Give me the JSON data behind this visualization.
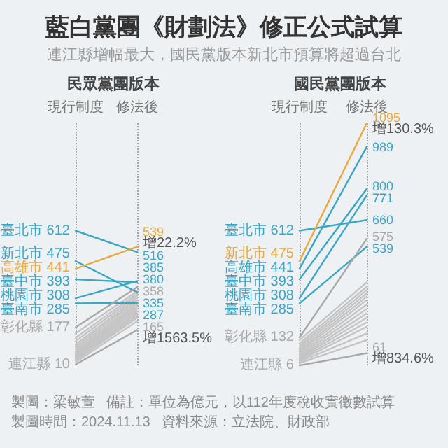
{
  "chart_data": [
    {
      "type": "other",
      "title": "藍白黨團《財劃法》修正公式試算",
      "subtitle": "連江縣增幅最大，國民黨版本新北市預算將超過台北",
      "annotations": [
        "製圖：梁敏萱",
        "備註：單位為億元，以112年度稅收實徵數試算",
        "製圖時間：2024.11.13",
        "資料來源：立法院、財政部"
      ]
    },
    {
      "type": "line",
      "title": "民眾黨團版本",
      "categories": [
        "現行制度",
        "修法後"
      ],
      "grid": "x",
      "marker": "none",
      "line_style": "solid",
      "series": [
        {
          "name": "臺北市",
          "color": "#3aa6c4",
          "values": [
            612,
            516
          ],
          "value_labels": [
            "612",
            "516"
          ]
        },
        {
          "name": "新北市",
          "color": "#3aa6c4",
          "values": [
            475,
            335
          ],
          "value_labels": [
            "475",
            "335"
          ]
        },
        {
          "name": "高雄市",
          "color": "#e9a93c",
          "values": [
            441,
            539
          ],
          "value_labels": [
            "441",
            "539"
          ]
        },
        {
          "name": "臺中市",
          "color": "#3aa6c4",
          "values": [
            393,
            380
          ],
          "value_labels": [
            "393",
            "380"
          ]
        },
        {
          "name": "桃園市",
          "color": "#3aa6c4",
          "values": [
            308,
            385
          ],
          "value_labels": [
            "308",
            "385"
          ]
        },
        {
          "name": "臺南市",
          "color": "#3aa6c4",
          "values": [
            285,
            287
          ],
          "value_labels": [
            "285",
            "287"
          ]
        },
        {
          "name": "彰化縣",
          "color": "#a8a8a8",
          "values": [
            177,
            358
          ],
          "value_labels": [
            "177",
            "358"
          ]
        },
        {
          "name": "連江縣",
          "color": "#a8a8a8",
          "values": [
            10,
            165
          ],
          "value_labels": [
            "10",
            "165"
          ]
        },
        {
          "color": "#c4c4c4",
          "values": [
            150,
            340
          ]
        },
        {
          "color": "#c4c4c4",
          "values": [
            130,
            330
          ]
        },
        {
          "color": "#c4c4c4",
          "values": [
            115,
            320
          ]
        },
        {
          "color": "#c4c4c4",
          "values": [
            100,
            310
          ]
        },
        {
          "color": "#c4c4c4",
          "values": [
            90,
            300
          ]
        },
        {
          "color": "#c4c4c4",
          "values": [
            80,
            290
          ]
        },
        {
          "color": "#c4c4c4",
          "values": [
            70,
            280
          ]
        },
        {
          "color": "#c4c4c4",
          "values": [
            62,
            270
          ]
        },
        {
          "color": "#c4c4c4",
          "values": [
            55,
            260
          ]
        },
        {
          "color": "#c4c4c4",
          "values": [
            48,
            250
          ]
        },
        {
          "color": "#c4c4c4",
          "values": [
            40,
            240
          ]
        },
        {
          "color": "#c4c4c4",
          "values": [
            34,
            230
          ]
        },
        {
          "color": "#c4c4c4",
          "values": [
            28,
            220
          ]
        },
        {
          "color": "#c4c4c4",
          "values": [
            20,
            205
          ]
        }
      ],
      "annotations": [
        {
          "text": "增22.2%",
          "x": "修法後",
          "y": 539
        },
        {
          "text": "增1563.5%",
          "x": "修法後",
          "y": 165
        }
      ]
    },
    {
      "type": "line",
      "title": "國民黨團版本",
      "categories": [
        "現行制度",
        "修法後"
      ],
      "grid": "x",
      "marker": "none",
      "line_style": "solid",
      "series": [
        {
          "name": "臺北市",
          "color": "#3aa6c4",
          "values": [
            612,
            660
          ],
          "value_labels": [
            "612",
            "660"
          ]
        },
        {
          "name": "新北市",
          "color": "#e9a93c",
          "values": [
            475,
            1095
          ],
          "value_labels": [
            "475",
            "1095"
          ]
        },
        {
          "name": "高雄市",
          "color": "#3aa6c4",
          "values": [
            441,
            989
          ],
          "value_labels": [
            "441",
            "989"
          ]
        },
        {
          "name": "臺中市",
          "color": "#3aa6c4",
          "values": [
            393,
            800
          ],
          "value_labels": [
            "393",
            "800"
          ]
        },
        {
          "name": "桃園市",
          "color": "#3aa6c4",
          "values": [
            308,
            771
          ],
          "value_labels": [
            "308",
            "771"
          ]
        },
        {
          "name": "臺南市",
          "color": "#3aa6c4",
          "values": [
            285,
            539
          ],
          "value_labels": [
            "285",
            "539"
          ]
        },
        {
          "name": "彰化縣",
          "color": "#a8a8a8",
          "values": [
            132,
            575
          ],
          "value_labels": [
            "132",
            "575"
          ]
        },
        {
          "name": "連江縣",
          "color": "#a8a8a8",
          "values": [
            6,
            61
          ],
          "value_labels": [
            "6",
            "61"
          ]
        },
        {
          "color": "#c4c4c4",
          "values": [
            120,
            380
          ]
        },
        {
          "color": "#c4c4c4",
          "values": [
            105,
            360
          ]
        },
        {
          "color": "#c4c4c4",
          "values": [
            95,
            345
          ]
        },
        {
          "color": "#c4c4c4",
          "values": [
            85,
            330
          ]
        },
        {
          "color": "#c4c4c4",
          "values": [
            75,
            315
          ]
        },
        {
          "color": "#c4c4c4",
          "values": [
            68,
            300
          ]
        },
        {
          "color": "#c4c4c4",
          "values": [
            60,
            280
          ]
        },
        {
          "color": "#c4c4c4",
          "values": [
            52,
            260
          ]
        },
        {
          "color": "#c4c4c4",
          "values": [
            45,
            240
          ]
        },
        {
          "color": "#c4c4c4",
          "values": [
            40,
            220
          ]
        },
        {
          "color": "#c4c4c4",
          "values": [
            34,
            200
          ]
        },
        {
          "color": "#c4c4c4",
          "values": [
            28,
            180
          ]
        },
        {
          "color": "#c4c4c4",
          "values": [
            22,
            150
          ]
        },
        {
          "color": "#c4c4c4",
          "values": [
            16,
            120
          ]
        }
      ],
      "annotations": [
        {
          "text": "增130.3%",
          "x": "修法後",
          "y": 1095
        },
        {
          "text": "增834.6%",
          "x": "修法後",
          "y": 61
        }
      ]
    }
  ]
}
